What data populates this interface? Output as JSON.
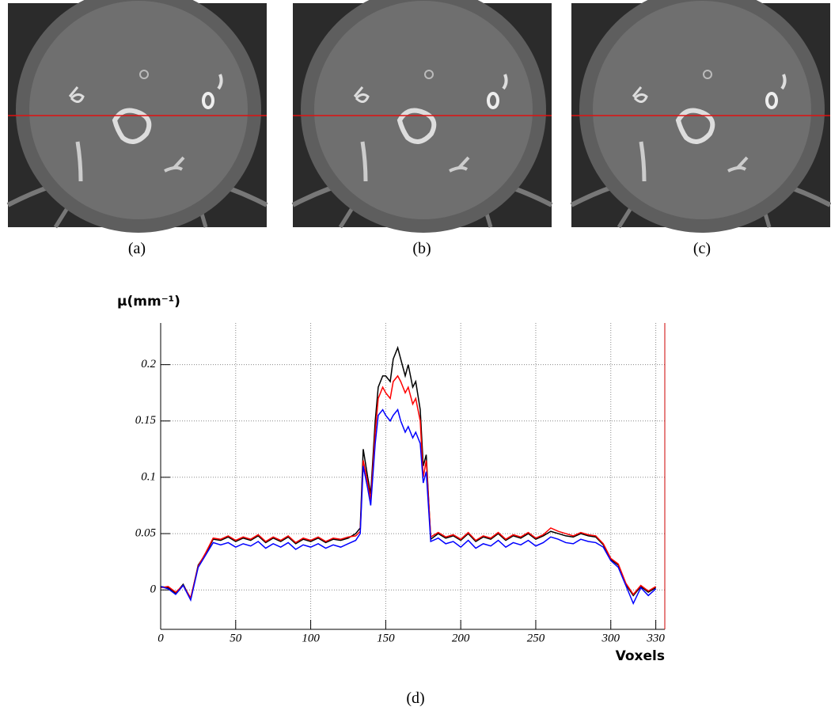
{
  "panels": [
    {
      "caption": "(a)"
    },
    {
      "caption": "(b)"
    },
    {
      "caption": "(c)"
    }
  ],
  "figure_caption": "(d)",
  "chart_data": {
    "type": "line",
    "xlabel": "Voxels",
    "ylabel": "μ(mm⁻¹)",
    "x": [
      0,
      5,
      10,
      15,
      20,
      25,
      30,
      35,
      40,
      45,
      50,
      55,
      60,
      65,
      70,
      75,
      80,
      85,
      90,
      95,
      100,
      105,
      110,
      115,
      120,
      125,
      130,
      133,
      135,
      138,
      140,
      143,
      145,
      148,
      150,
      153,
      155,
      158,
      160,
      163,
      165,
      168,
      170,
      173,
      175,
      177,
      180,
      185,
      190,
      195,
      200,
      205,
      210,
      215,
      220,
      225,
      230,
      235,
      240,
      245,
      250,
      255,
      260,
      265,
      270,
      275,
      280,
      285,
      290,
      295,
      300,
      305,
      310,
      315,
      320,
      325,
      330
    ],
    "series": [
      {
        "color": "#000000",
        "values": [
          0.003,
          0.002,
          -0.003,
          0.005,
          -0.008,
          0.022,
          0.032,
          0.045,
          0.044,
          0.047,
          0.043,
          0.046,
          0.044,
          0.048,
          0.042,
          0.046,
          0.043,
          0.047,
          0.041,
          0.045,
          0.043,
          0.046,
          0.042,
          0.045,
          0.044,
          0.046,
          0.05,
          0.055,
          0.125,
          0.1,
          0.085,
          0.15,
          0.18,
          0.19,
          0.19,
          0.185,
          0.205,
          0.215,
          0.205,
          0.19,
          0.2,
          0.18,
          0.185,
          0.16,
          0.11,
          0.12,
          0.045,
          0.05,
          0.046,
          0.048,
          0.044,
          0.05,
          0.043,
          0.047,
          0.045,
          0.05,
          0.044,
          0.048,
          0.046,
          0.05,
          0.045,
          0.048,
          0.052,
          0.05,
          0.048,
          0.047,
          0.05,
          0.048,
          0.047,
          0.04,
          0.027,
          0.022,
          0.005,
          -0.005,
          0.003,
          -0.002,
          0.002
        ]
      },
      {
        "color": "#ff0000",
        "values": [
          0.002,
          0.003,
          -0.002,
          0.004,
          -0.007,
          0.021,
          0.033,
          0.046,
          0.045,
          0.048,
          0.044,
          0.047,
          0.045,
          0.049,
          0.043,
          0.047,
          0.044,
          0.048,
          0.042,
          0.046,
          0.044,
          0.047,
          0.043,
          0.046,
          0.045,
          0.047,
          0.048,
          0.052,
          0.115,
          0.095,
          0.08,
          0.14,
          0.17,
          0.18,
          0.175,
          0.17,
          0.185,
          0.19,
          0.185,
          0.175,
          0.18,
          0.165,
          0.17,
          0.15,
          0.1,
          0.115,
          0.047,
          0.051,
          0.047,
          0.049,
          0.045,
          0.051,
          0.044,
          0.048,
          0.046,
          0.051,
          0.045,
          0.049,
          0.047,
          0.051,
          0.046,
          0.049,
          0.055,
          0.052,
          0.05,
          0.048,
          0.051,
          0.049,
          0.048,
          0.041,
          0.028,
          0.023,
          0.006,
          -0.004,
          0.004,
          -0.001,
          0.003
        ]
      },
      {
        "color": "#0000ff",
        "values": [
          0.003,
          0.001,
          -0.004,
          0.004,
          -0.009,
          0.02,
          0.031,
          0.042,
          0.04,
          0.042,
          0.038,
          0.041,
          0.039,
          0.043,
          0.037,
          0.041,
          0.038,
          0.042,
          0.036,
          0.04,
          0.038,
          0.041,
          0.037,
          0.04,
          0.038,
          0.041,
          0.044,
          0.05,
          0.11,
          0.09,
          0.075,
          0.13,
          0.155,
          0.16,
          0.155,
          0.15,
          0.155,
          0.16,
          0.15,
          0.14,
          0.145,
          0.135,
          0.14,
          0.13,
          0.095,
          0.105,
          0.043,
          0.046,
          0.041,
          0.043,
          0.038,
          0.044,
          0.037,
          0.041,
          0.039,
          0.044,
          0.038,
          0.042,
          0.04,
          0.044,
          0.039,
          0.042,
          0.047,
          0.045,
          0.042,
          0.041,
          0.045,
          0.043,
          0.042,
          0.038,
          0.026,
          0.02,
          0.004,
          -0.012,
          0.002,
          -0.005,
          0.001
        ]
      }
    ],
    "xlim": [
      0,
      336
    ],
    "ylim": [
      -0.035,
      0.237
    ],
    "xticks": [
      0,
      50,
      100,
      150,
      200,
      250,
      300,
      330
    ],
    "yticks": [
      0,
      0.05,
      0.1,
      0.15,
      0.2
    ],
    "grid": true
  }
}
